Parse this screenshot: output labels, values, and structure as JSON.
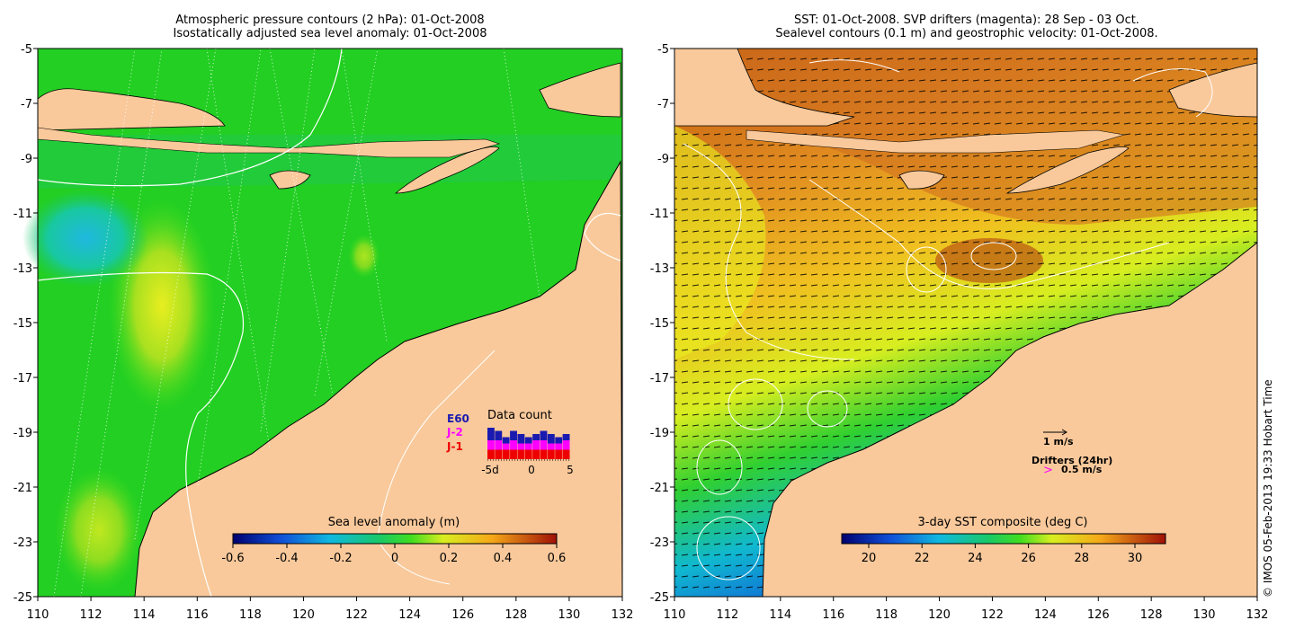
{
  "left_panel": {
    "title_line1": "Atmospheric pressure contours (2 hPa): 01-Oct-2008",
    "title_line2": "Isostatically adjusted sea level anomaly: 01-Oct-2008",
    "colorbar_label": "Sea level anomaly (m)",
    "colorbar_ticks": [
      "-0.6",
      "-0.4",
      "-0.2",
      "0",
      "0.2",
      "0.4",
      "0.6"
    ],
    "data_count_title": "Data count",
    "legend_entries": [
      {
        "label": "E60",
        "color": "#1a1ab0"
      },
      {
        "label": "J-2",
        "color": "#ff00ff"
      },
      {
        "label": "J-1",
        "color": "#ee0000"
      }
    ],
    "data_count_axis": [
      "-5d",
      "0",
      "5"
    ],
    "data_count_bars": [
      {
        "j1": 3,
        "j2": 3,
        "e": 4
      },
      {
        "j1": 3,
        "j2": 3,
        "e": 3
      },
      {
        "j1": 3,
        "j2": 2,
        "e": 2
      },
      {
        "j1": 3,
        "j2": 3,
        "e": 3
      },
      {
        "j1": 3,
        "j2": 2,
        "e": 3
      },
      {
        "j1": 3,
        "j2": 2,
        "e": 2
      },
      {
        "j1": 3,
        "j2": 3,
        "e": 2
      },
      {
        "j1": 3,
        "j2": 3,
        "e": 3
      },
      {
        "j1": 3,
        "j2": 2,
        "e": 3
      },
      {
        "j1": 3,
        "j2": 2,
        "e": 2
      },
      {
        "j1": 3,
        "j2": 3,
        "e": 2
      }
    ]
  },
  "right_panel": {
    "title_line1": "SST: 01-Oct-2008. SVP drifters (magenta): 28 Sep - 03 Oct.",
    "title_line2": "Sealevel contours (0.1 m) and geostrophic velocity: 01-Oct-2008.",
    "colorbar_label": "3-day SST composite (deg C)",
    "colorbar_ticks": [
      "20",
      "22",
      "24",
      "26",
      "28",
      "30"
    ],
    "velocity_legend": "1 m/s",
    "drifters_legend": "Drifters (24hr)",
    "drifter_symbol": ">",
    "drifter_speed": "0.5 m/s"
  },
  "axes": {
    "lon_ticks": [
      "110",
      "112",
      "114",
      "116",
      "118",
      "120",
      "122",
      "124",
      "126",
      "128",
      "130",
      "132"
    ],
    "lat_ticks": [
      "-5",
      "-7",
      "-9",
      "-11",
      "-13",
      "-15",
      "-17",
      "-19",
      "-21",
      "-23",
      "-25"
    ]
  },
  "footer": "© IMOS 05-Feb-2013 19:33 Hobart Time",
  "colors": {
    "land": "#f9c99b",
    "ocean_green": "#22cf22",
    "accent_magenta": "#ff00ff"
  }
}
